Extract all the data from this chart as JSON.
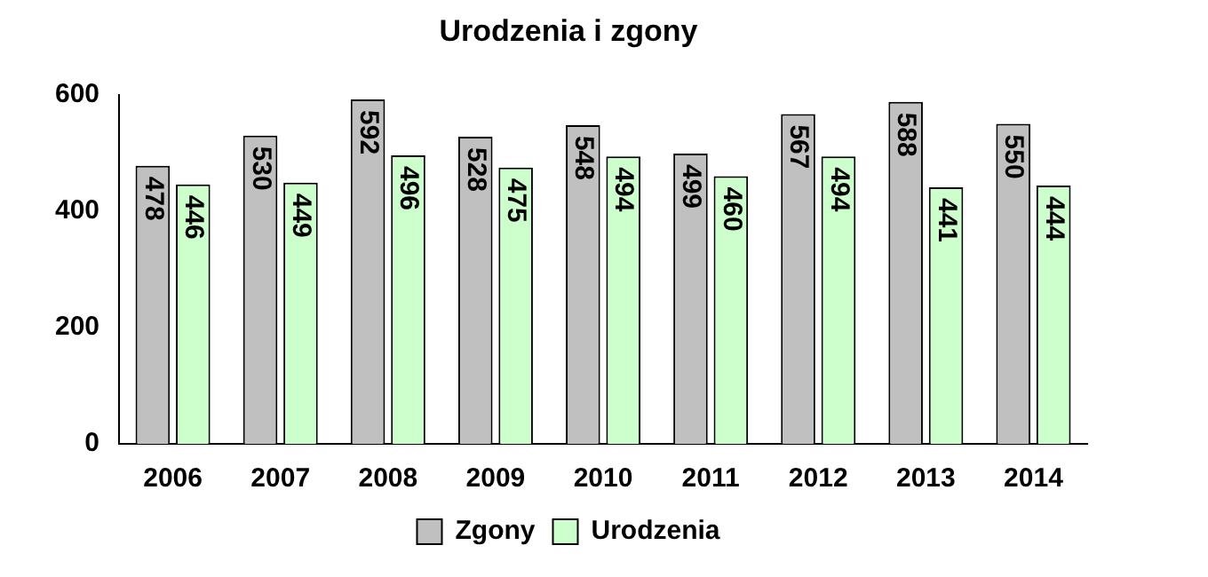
{
  "chart_data": {
    "type": "bar",
    "title": "Urodzenia i zgony",
    "categories": [
      "2006",
      "2007",
      "2008",
      "2009",
      "2010",
      "2011",
      "2012",
      "2013",
      "2014"
    ],
    "series": [
      {
        "name": "Zgony",
        "color": "#c0c0c0",
        "values": [
          478,
          530,
          592,
          528,
          548,
          499,
          567,
          588,
          550
        ]
      },
      {
        "name": "Urodzenia",
        "color": "#ccffcc",
        "values": [
          446,
          449,
          496,
          475,
          494,
          460,
          494,
          441,
          444
        ]
      }
    ],
    "ylim": [
      0,
      600
    ],
    "yticks": [
      0,
      200,
      400,
      600
    ],
    "grid": false,
    "legend": "bottom",
    "data_labels": true
  }
}
